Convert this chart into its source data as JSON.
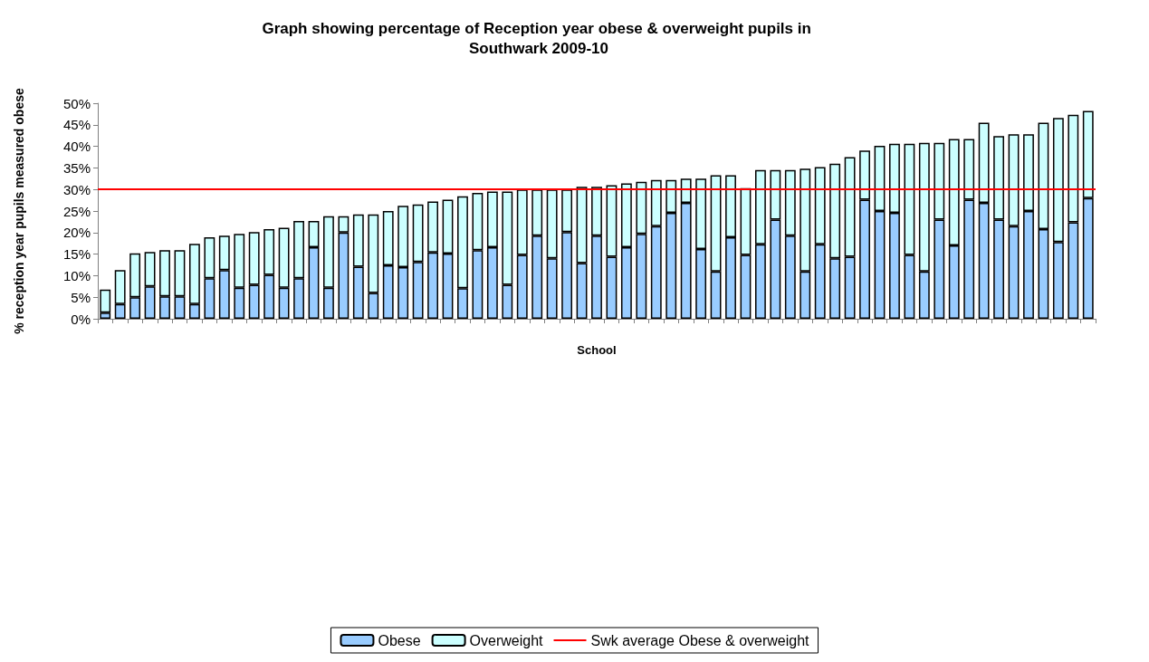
{
  "chart_data": {
    "type": "bar",
    "stacked": true,
    "title": "Graph showing percentage of Reception year obese & overweight pupils in Southwark 2009-10",
    "xlabel": "School",
    "ylabel": "% reception year pupils measured obese",
    "categories": [
      null,
      null,
      null,
      null,
      null,
      null,
      null,
      null,
      null,
      null,
      null,
      null,
      null,
      null,
      null,
      null,
      null,
      null,
      null,
      null,
      null,
      null,
      null,
      null,
      null,
      null,
      null,
      null,
      null,
      null,
      null,
      null,
      null,
      null,
      null,
      null,
      null,
      null,
      null,
      null,
      null,
      null,
      null,
      null,
      null,
      null,
      null,
      null,
      null,
      null,
      null,
      null,
      null,
      null,
      null,
      null,
      null,
      null,
      null,
      null,
      null,
      null,
      null,
      null,
      null,
      null,
      null
    ],
    "series": [
      {
        "name": "Obese",
        "color": "#99ccff",
        "values": [
          1.4,
          3.4,
          5.0,
          7.5,
          5.2,
          5.2,
          3.4,
          9.4,
          11.3,
          7.2,
          7.9,
          10.2,
          7.2,
          9.4,
          16.6,
          7.2,
          20.0,
          12.1,
          6.0,
          12.4,
          12.0,
          13.2,
          15.4,
          15.1,
          7.1,
          15.9,
          16.6,
          7.9,
          14.8,
          19.3,
          14.0,
          20.1,
          12.9,
          19.3,
          14.4,
          16.6,
          19.7,
          21.5,
          24.6,
          26.9,
          16.2,
          11.0,
          18.9,
          14.8,
          17.3,
          23.0,
          19.3,
          11.0,
          17.3,
          14.0,
          14.4,
          27.6,
          25.0,
          24.6,
          14.8,
          11.0,
          23.0,
          17.0,
          27.6,
          26.9,
          23.0,
          21.5,
          25.0,
          20.8,
          17.8,
          22.4,
          28.0
        ]
      },
      {
        "name": "Overweight",
        "color": "#ccffff",
        "values": [
          5.4,
          7.9,
          10.2,
          8.0,
          10.7,
          10.7,
          14.0,
          9.5,
          8.0,
          12.5,
          12.2,
          10.6,
          13.9,
          13.3,
          6.1,
          16.6,
          3.8,
          12.1,
          18.2,
          12.6,
          14.2,
          13.3,
          11.8,
          12.5,
          21.3,
          13.3,
          12.9,
          21.6,
          15.2,
          10.7,
          16.0,
          9.9,
          17.7,
          11.3,
          16.6,
          14.8,
          12.1,
          10.7,
          7.6,
          5.6,
          16.3,
          22.3,
          14.4,
          15.5,
          17.2,
          11.5,
          15.2,
          23.8,
          17.9,
          22.0,
          23.1,
          11.4,
          15.1,
          16.0,
          25.8,
          29.8,
          17.8,
          24.7,
          14.1,
          18.6,
          19.4,
          21.3,
          17.8,
          24.7,
          28.8,
          24.9,
          20.2
        ]
      }
    ],
    "ref_lines": [
      {
        "axis": "y",
        "value": 30,
        "label": "Swk average Obese & overweight",
        "color": "#ff0000"
      }
    ],
    "ylim": [
      0,
      50
    ],
    "yticks": [
      {
        "value": 0,
        "label": "0%"
      },
      {
        "value": 5,
        "label": "5%"
      },
      {
        "value": 10,
        "label": "10%"
      },
      {
        "value": 15,
        "label": "15%"
      },
      {
        "value": 20,
        "label": "20%"
      },
      {
        "value": 25,
        "label": "25%"
      },
      {
        "value": 30,
        "label": "30%"
      },
      {
        "value": 35,
        "label": "35%"
      },
      {
        "value": 40,
        "label": "40%"
      },
      {
        "value": 45,
        "label": "45%"
      },
      {
        "value": 50,
        "label": "50%"
      }
    ],
    "grid": false,
    "legend": "bottom"
  }
}
